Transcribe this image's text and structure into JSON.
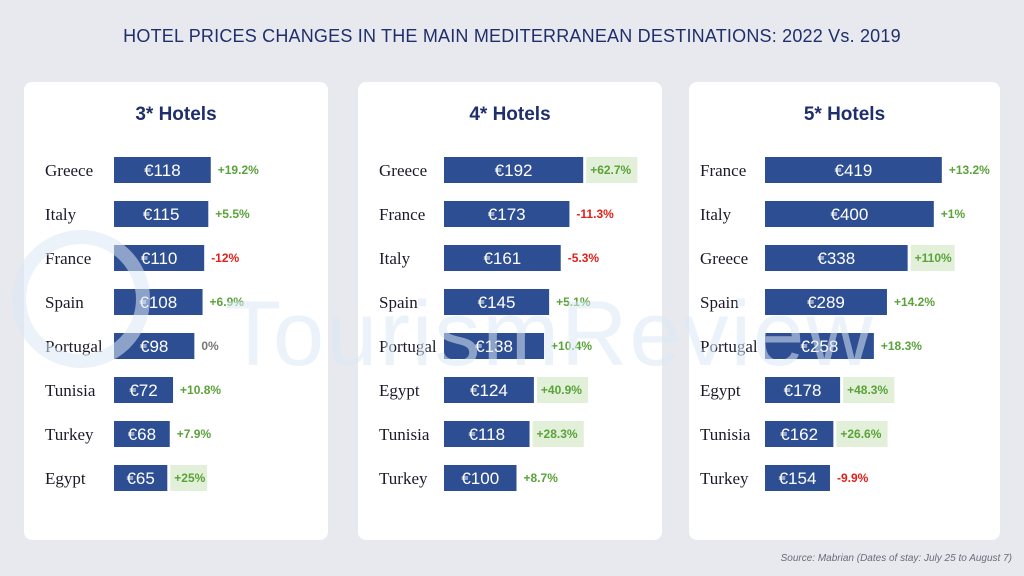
{
  "page": {
    "title": "HOTEL PRICES CHANGES IN THE MAIN MEDITERRANEAN DESTINATIONS: 2022 Vs. 2019",
    "watermark": "TourismReview",
    "source": "Source: Mabrian (Dates of stay: July 25 to August 7)"
  },
  "colors": {
    "bar": "#2e4e93",
    "positive": "#5aa23a",
    "negative": "#e0201a",
    "neutral": "#777777",
    "highlight_bg": "#e2efd9"
  },
  "chart_data": [
    {
      "type": "bar",
      "orientation": "horizontal",
      "title": "3* Hotels",
      "categories": [
        "Greece",
        "Italy",
        "France",
        "Spain",
        "Portugal",
        "Tunisia",
        "Turkey",
        "Egypt"
      ],
      "values": [
        118,
        115,
        110,
        108,
        98,
        72,
        68,
        65
      ],
      "value_labels": [
        "€118",
        "€115",
        "€110",
        "€108",
        "€98",
        "€72",
        "€68",
        "€65"
      ],
      "changes": [
        "+19.2%",
        "+5.5%",
        "-12%",
        "+6.9%",
        "0%",
        "+10.8%",
        "+7.9%",
        "+25%"
      ],
      "highlighted": [
        false,
        false,
        false,
        false,
        false,
        false,
        false,
        true
      ]
    },
    {
      "type": "bar",
      "orientation": "horizontal",
      "title": "4* Hotels",
      "categories": [
        "Greece",
        "France",
        "Italy",
        "Spain",
        "Portugal",
        "Egypt",
        "Tunisia",
        "Turkey"
      ],
      "values": [
        192,
        173,
        161,
        145,
        138,
        124,
        118,
        100
      ],
      "value_labels": [
        "€192",
        "€173",
        "€161",
        "€145",
        "€138",
        "€124",
        "€118",
        "€100"
      ],
      "changes": [
        "+62.7%",
        "-11.3%",
        "-5.3%",
        "+5.1%",
        "+10.4%",
        "+40.9%",
        "+28.3%",
        "+8.7%"
      ],
      "highlighted": [
        true,
        false,
        false,
        false,
        false,
        true,
        true,
        false
      ]
    },
    {
      "type": "bar",
      "orientation": "horizontal",
      "title": "5* Hotels",
      "categories": [
        "France",
        "Italy",
        "Greece",
        "Spain",
        "Portugal",
        "Egypt",
        "Tunisia",
        "Turkey"
      ],
      "values": [
        419,
        400,
        338,
        289,
        258,
        178,
        162,
        154
      ],
      "value_labels": [
        "€419",
        "€400",
        "€338",
        "€289",
        "€258",
        "€178",
        "€162",
        "€154"
      ],
      "changes": [
        "+13.2%",
        "+1%",
        "+110%",
        "+14.2%",
        "+18.3%",
        "+48.3%",
        "+26.6%",
        "-9.9%"
      ],
      "highlighted": [
        false,
        false,
        true,
        false,
        false,
        true,
        true,
        false
      ]
    }
  ]
}
